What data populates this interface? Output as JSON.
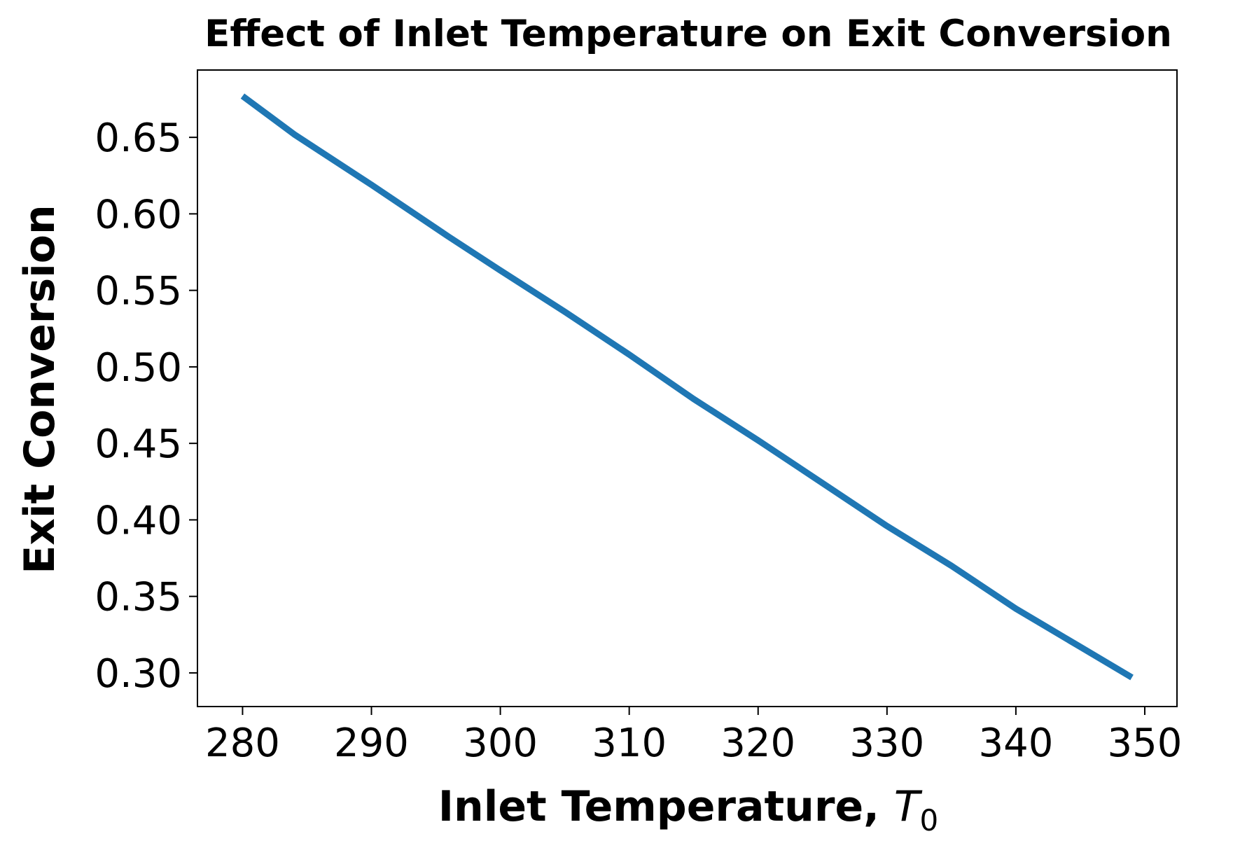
{
  "chart_data": {
    "type": "line",
    "title": "Effect of Inlet Temperature on Exit Conversion",
    "xlabel": "Inlet Temperature, ",
    "xlabel_math_symbol": "T",
    "xlabel_math_subscript": "0",
    "ylabel": "Exit Conversion",
    "xlim": [
      276.5,
      352.5
    ],
    "ylim": [
      0.278,
      0.694
    ],
    "xticks": [
      280,
      290,
      300,
      310,
      320,
      330,
      340,
      350
    ],
    "xtick_labels": [
      "280",
      "290",
      "300",
      "310",
      "320",
      "330",
      "340",
      "350"
    ],
    "yticks": [
      0.3,
      0.35,
      0.4,
      0.45,
      0.5,
      0.55,
      0.6,
      0.65
    ],
    "ytick_labels": [
      "0.30",
      "0.35",
      "0.40",
      "0.45",
      "0.50",
      "0.55",
      "0.60",
      "0.65"
    ],
    "grid": false,
    "series": [
      {
        "color": "#1f77b4",
        "x": [
          280,
          284,
          290,
          296,
          300,
          305,
          310,
          315,
          320,
          325,
          330,
          335,
          340,
          345,
          349
        ],
        "y": [
          0.677,
          0.652,
          0.619,
          0.585,
          0.563,
          0.536,
          0.508,
          0.479,
          0.452,
          0.424,
          0.396,
          0.37,
          0.342,
          0.317,
          0.297
        ]
      }
    ]
  }
}
